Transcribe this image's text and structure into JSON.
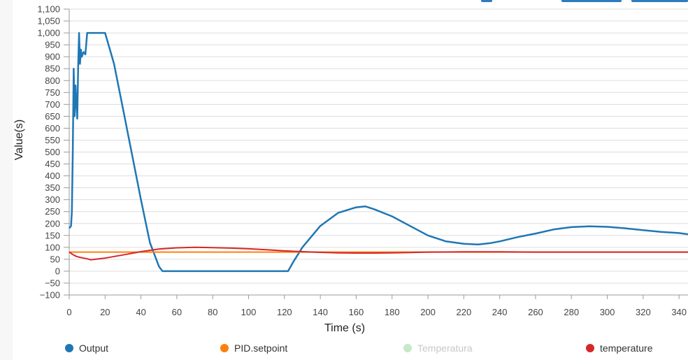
{
  "chart_data": {
    "type": "line",
    "title": "",
    "xlabel": "Time (s)",
    "ylabel": "Value(s)",
    "xlim": [
      0,
      345
    ],
    "ylim": [
      -100,
      1100
    ],
    "x_ticks": [
      0,
      20,
      40,
      60,
      80,
      100,
      120,
      140,
      160,
      180,
      200,
      220,
      240,
      260,
      280,
      300,
      320,
      340
    ],
    "y_ticks": [
      -100,
      -50,
      0,
      50,
      100,
      150,
      200,
      250,
      300,
      350,
      400,
      450,
      500,
      550,
      600,
      650,
      700,
      750,
      800,
      850,
      900,
      950,
      1000,
      1050,
      1100
    ],
    "y_tick_labels": [
      "−100",
      "−50",
      "0",
      "50",
      "100",
      "150",
      "200",
      "250",
      "300",
      "350",
      "400",
      "450",
      "500",
      "550",
      "600",
      "650",
      "700",
      "750",
      "800",
      "850",
      "900",
      "950",
      "1,000",
      "1,050",
      "1,100"
    ],
    "grid": true,
    "legend_position": "bottom",
    "series": [
      {
        "name": "Output",
        "color": "#1f77b4",
        "visible": true,
        "x": [
          0,
          1,
          1.5,
          2,
          2.5,
          3,
          3.5,
          4,
          4.5,
          5,
          5.5,
          6,
          6.5,
          7,
          7.5,
          8,
          9,
          10,
          11,
          15,
          20,
          25,
          30,
          35,
          40,
          45,
          50,
          52,
          60,
          80,
          100,
          120,
          122,
          125,
          130,
          140,
          150,
          160,
          165,
          170,
          180,
          190,
          200,
          210,
          220,
          228,
          235,
          240,
          250,
          260,
          270,
          280,
          290,
          300,
          310,
          320,
          330,
          340,
          345
        ],
        "y": [
          180,
          190,
          250,
          500,
          850,
          650,
          780,
          700,
          640,
          860,
          1000,
          870,
          930,
          900,
          910,
          920,
          910,
          1000,
          1000,
          1000,
          1000,
          870,
          680,
          490,
          300,
          120,
          20,
          0,
          0,
          0,
          0,
          0,
          0,
          40,
          100,
          190,
          245,
          268,
          272,
          260,
          230,
          190,
          150,
          125,
          115,
          112,
          118,
          125,
          143,
          158,
          175,
          185,
          188,
          186,
          180,
          172,
          165,
          160,
          155
        ]
      },
      {
        "name": "PID.setpoint",
        "color": "#ff7f0e",
        "visible": true,
        "x": [
          0,
          345
        ],
        "y": [
          80,
          80
        ]
      },
      {
        "name": "Temperatura",
        "color": "#c6e8c8",
        "visible": false,
        "x": [],
        "y": []
      },
      {
        "name": "temperature",
        "color": "#d62728",
        "visible": true,
        "x": [
          0,
          2,
          4,
          6,
          8,
          10,
          12,
          20,
          30,
          40,
          50,
          60,
          70,
          80,
          90,
          100,
          110,
          120,
          130,
          140,
          150,
          160,
          170,
          180,
          190,
          200,
          220,
          240,
          260,
          280,
          300,
          320,
          340,
          345
        ],
        "y": [
          80,
          70,
          62,
          58,
          55,
          52,
          48,
          55,
          68,
          82,
          93,
          98,
          100,
          99,
          97,
          94,
          90,
          85,
          82,
          79,
          77,
          76,
          76,
          77,
          78,
          80,
          81,
          81,
          80,
          80,
          80,
          80,
          80,
          80
        ]
      }
    ]
  }
}
